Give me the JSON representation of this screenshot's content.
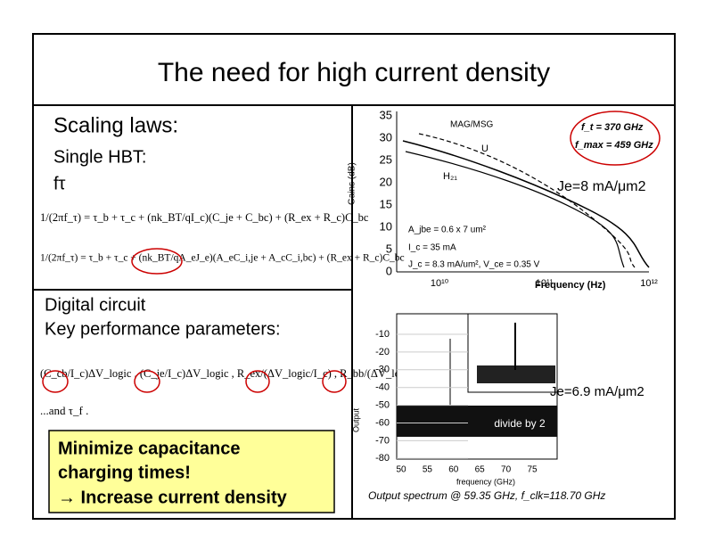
{
  "title": "The need for high current density",
  "scaling": {
    "heading": "Scaling laws:",
    "subheading": "Single HBT:",
    "symbol": "fτ",
    "eq1": "1/(2πf_τ) = τ_b + τ_c + (nk_BT/qI_c)(C_je + C_bc) + (R_ex + R_c)C_bc",
    "eq2": "1/(2πf_τ) = τ_b + τ_c + (nk_BT/qA_eJ_e)(A_eC_i,je + A_cC_i,bc) + (R_ex + R_c)C_bc"
  },
  "digital": {
    "line1": "Digital circuit",
    "line2": "Key performance parameters:",
    "terms": "(C_cb/I_c)ΔV_logic ,  (C_je/I_c)ΔV_logic ,  R_ex/(ΔV_logic/I_c) ,  R_bb/(ΔV_logic/I_c)",
    "tail": "...and τ_f ."
  },
  "callout": {
    "line1": "Minimize capacitance",
    "line2": "charging times!",
    "line3": "→ Increase current density"
  },
  "plot_top": {
    "yticks": [
      "35",
      "30",
      "25",
      "20",
      "15",
      "10",
      "5",
      "0"
    ],
    "xticks": [
      "10¹⁰",
      "10¹¹",
      "10¹²"
    ],
    "x_label": "Frequency (Hz)",
    "y_label": "Gains (dB)",
    "curve_labels": [
      "MAG/MSG",
      "U",
      "H₂₁"
    ],
    "ft": "f_t = 370 GHz",
    "fmax": "f_max = 459 GHz",
    "device": [
      "A_jbe = 0.6 x 7 um²",
      "I_c = 35 mA",
      "J_c = 8.3 mA/um², V_ce = 0.35 V"
    ],
    "current_density": "Je=8 mA/μm2"
  },
  "plot_bottom": {
    "yticks": [
      "-10",
      "-20",
      "-30",
      "-40",
      "-50",
      "-60",
      "-70",
      "-80"
    ],
    "xticks": [
      "50",
      "55",
      "60",
      "65",
      "70",
      "75"
    ],
    "x_label": "frequency (GHz)",
    "y_label": "Output",
    "annotation": "divide by 2",
    "current_density": "Je=6.9 mA/μm2",
    "caption": "Output spectrum @ 59.35 GHz, f_clk=118.70 GHz"
  }
}
